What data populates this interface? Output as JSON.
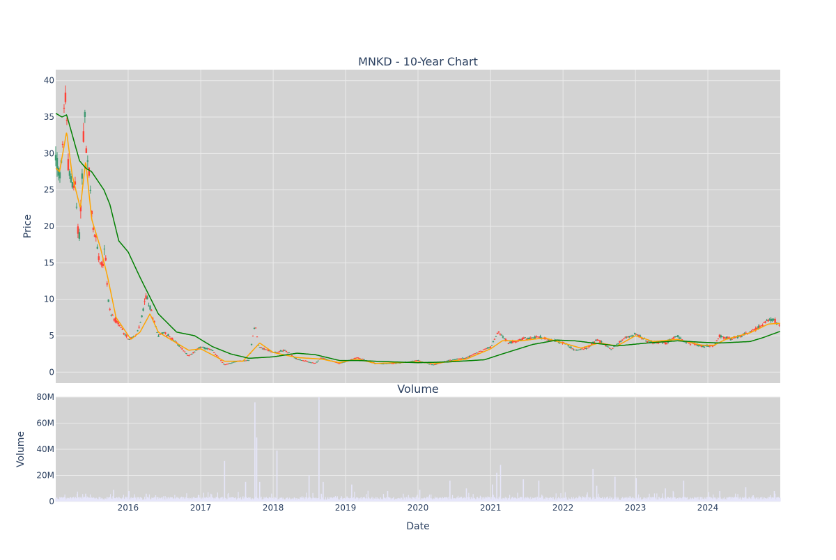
{
  "chart_data": [
    {
      "type": "candlestick",
      "title": "MNKD - 10-Year Chart",
      "xlabel": "",
      "ylabel": "Price",
      "ylim": [
        -1.5,
        41.5
      ],
      "yticks": [
        0,
        5,
        10,
        15,
        20,
        25,
        30,
        35,
        40
      ],
      "xlim": [
        "2015-01-01",
        "2024-12-31"
      ],
      "grid": true,
      "legend": "none",
      "colors": {
        "increasing": "#3d9970",
        "decreasing": "#ff4136",
        "ma_fast": "#ffa500",
        "ma_slow": "#008000",
        "plot_bg": "#d3d3d3",
        "grid": "#ebebeb"
      },
      "anchors": [
        [
          "2015-01-02",
          29.5
        ],
        [
          "2015-01-20",
          26.5
        ],
        [
          "2015-02-05",
          30.5
        ],
        [
          "2015-02-14",
          39.3
        ],
        [
          "2015-02-25",
          34.5
        ],
        [
          "2015-03-06",
          28.0
        ],
        [
          "2015-03-20",
          26.0
        ],
        [
          "2015-04-10",
          25.5
        ],
        [
          "2015-04-27",
          17.5
        ],
        [
          "2015-05-10",
          24.0
        ],
        [
          "2015-05-26",
          36.5
        ],
        [
          "2015-06-05",
          29.5
        ],
        [
          "2015-06-20",
          27.0
        ],
        [
          "2015-07-05",
          20.0
        ],
        [
          "2015-07-25",
          18.0
        ],
        [
          "2015-08-10",
          15.5
        ],
        [
          "2015-08-25",
          14.5
        ],
        [
          "2015-09-05",
          18.0
        ],
        [
          "2015-09-20",
          10.5
        ],
        [
          "2015-10-05",
          8.0
        ],
        [
          "2015-10-25",
          7.3
        ],
        [
          "2016-01-05",
          4.5
        ],
        [
          "2016-02-10",
          5.0
        ],
        [
          "2016-03-01",
          6.5
        ],
        [
          "2016-04-01",
          10.5
        ],
        [
          "2016-05-01",
          8.0
        ],
        [
          "2016-06-01",
          5.0
        ],
        [
          "2016-07-01",
          5.5
        ],
        [
          "2016-09-01",
          4.0
        ],
        [
          "2016-11-01",
          2.2
        ],
        [
          "2017-01-01",
          3.5
        ],
        [
          "2017-03-01",
          3.0
        ],
        [
          "2017-05-01",
          1.0
        ],
        [
          "2017-07-01",
          1.5
        ],
        [
          "2017-09-01",
          1.6
        ],
        [
          "2017-10-01",
          6.7
        ],
        [
          "2017-10-20",
          3.5
        ],
        [
          "2018-01-01",
          2.7
        ],
        [
          "2018-03-01",
          3.0
        ],
        [
          "2018-05-01",
          1.8
        ],
        [
          "2018-08-01",
          1.2
        ],
        [
          "2018-09-01",
          2.0
        ],
        [
          "2018-12-01",
          1.2
        ],
        [
          "2019-03-01",
          2.0
        ],
        [
          "2019-06-01",
          1.2
        ],
        [
          "2019-09-01",
          1.2
        ],
        [
          "2020-01-01",
          1.6
        ],
        [
          "2020-03-20",
          1.0
        ],
        [
          "2020-06-01",
          1.6
        ],
        [
          "2020-09-01",
          2.0
        ],
        [
          "2021-01-01",
          3.5
        ],
        [
          "2021-02-10",
          5.5
        ],
        [
          "2021-04-01",
          4.0
        ],
        [
          "2021-06-01",
          4.5
        ],
        [
          "2021-09-01",
          4.8
        ],
        [
          "2021-12-01",
          4.2
        ],
        [
          "2022-01-10",
          4.0
        ],
        [
          "2022-03-01",
          3.0
        ],
        [
          "2022-05-01",
          3.3
        ],
        [
          "2022-06-20",
          4.5
        ],
        [
          "2022-09-01",
          3.2
        ],
        [
          "2022-11-01",
          4.5
        ],
        [
          "2023-01-01",
          5.3
        ],
        [
          "2023-03-01",
          4.2
        ],
        [
          "2023-06-01",
          4.0
        ],
        [
          "2023-08-01",
          5.0
        ],
        [
          "2023-09-01",
          4.2
        ],
        [
          "2023-12-01",
          3.6
        ],
        [
          "2024-02-01",
          3.6
        ],
        [
          "2024-03-01",
          5.0
        ],
        [
          "2024-05-01",
          4.5
        ],
        [
          "2024-08-01",
          5.5
        ],
        [
          "2024-10-01",
          6.5
        ],
        [
          "2024-11-20",
          7.3
        ],
        [
          "2024-12-31",
          6.5
        ]
      ],
      "ma_fast_anchors": [
        [
          "2015-01-02",
          28.0
        ],
        [
          "2015-01-20",
          27.5
        ],
        [
          "2015-02-25",
          33.0
        ],
        [
          "2015-03-25",
          27.0
        ],
        [
          "2015-05-05",
          22.5
        ],
        [
          "2015-06-01",
          29.0
        ],
        [
          "2015-07-01",
          21.0
        ],
        [
          "2015-08-15",
          17.0
        ],
        [
          "2015-09-20",
          13.0
        ],
        [
          "2015-11-01",
          7.5
        ],
        [
          "2016-01-15",
          4.5
        ],
        [
          "2016-03-01",
          5.5
        ],
        [
          "2016-04-20",
          8.0
        ],
        [
          "2016-06-01",
          5.5
        ],
        [
          "2016-09-01",
          4.0
        ],
        [
          "2016-11-01",
          3.0
        ],
        [
          "2017-01-01",
          3.2
        ],
        [
          "2017-05-01",
          1.5
        ],
        [
          "2017-08-01",
          1.5
        ],
        [
          "2017-10-25",
          4.0
        ],
        [
          "2018-01-01",
          2.7
        ],
        [
          "2018-05-01",
          2.0
        ],
        [
          "2018-09-01",
          1.8
        ],
        [
          "2018-12-01",
          1.3
        ],
        [
          "2019-03-01",
          1.8
        ],
        [
          "2019-06-01",
          1.2
        ],
        [
          "2020-01-01",
          1.4
        ],
        [
          "2020-04-01",
          1.2
        ],
        [
          "2020-09-01",
          1.8
        ],
        [
          "2021-01-01",
          3.2
        ],
        [
          "2021-03-01",
          4.3
        ],
        [
          "2021-06-01",
          4.3
        ],
        [
          "2021-10-01",
          4.7
        ],
        [
          "2022-01-01",
          4.0
        ],
        [
          "2022-04-01",
          3.3
        ],
        [
          "2022-07-01",
          4.0
        ],
        [
          "2022-10-01",
          3.6
        ],
        [
          "2023-01-01",
          5.0
        ],
        [
          "2023-04-01",
          4.2
        ],
        [
          "2023-08-01",
          4.5
        ],
        [
          "2023-12-01",
          3.7
        ],
        [
          "2024-02-01",
          3.7
        ],
        [
          "2024-04-01",
          4.5
        ],
        [
          "2024-08-01",
          5.4
        ],
        [
          "2024-11-01",
          6.6
        ],
        [
          "2024-12-31",
          6.7
        ]
      ],
      "ma_slow_anchors": [
        [
          "2015-01-02",
          35.5
        ],
        [
          "2015-02-01",
          35.0
        ],
        [
          "2015-02-25",
          35.3
        ],
        [
          "2015-05-01",
          29.0
        ],
        [
          "2015-06-01",
          28.0
        ],
        [
          "2015-07-01",
          27.5
        ],
        [
          "2015-09-01",
          25.0
        ],
        [
          "2015-10-01",
          23.0
        ],
        [
          "2015-11-15",
          18.0
        ],
        [
          "2016-01-01",
          16.5
        ],
        [
          "2016-03-01",
          13.0
        ],
        [
          "2016-06-01",
          8.0
        ],
        [
          "2016-09-01",
          5.5
        ],
        [
          "2016-12-01",
          5.0
        ],
        [
          "2017-03-01",
          3.5
        ],
        [
          "2017-06-01",
          2.5
        ],
        [
          "2017-09-01",
          1.9
        ],
        [
          "2018-01-01",
          2.1
        ],
        [
          "2018-05-01",
          2.6
        ],
        [
          "2018-08-01",
          2.4
        ],
        [
          "2018-12-01",
          1.6
        ],
        [
          "2019-03-01",
          1.6
        ],
        [
          "2019-09-01",
          1.4
        ],
        [
          "2020-01-01",
          1.3
        ],
        [
          "2020-06-01",
          1.4
        ],
        [
          "2020-12-01",
          1.7
        ],
        [
          "2021-03-01",
          2.5
        ],
        [
          "2021-08-01",
          3.8
        ],
        [
          "2021-12-01",
          4.4
        ],
        [
          "2022-03-01",
          4.3
        ],
        [
          "2022-06-01",
          4.0
        ],
        [
          "2022-10-01",
          3.6
        ],
        [
          "2023-03-01",
          4.0
        ],
        [
          "2023-08-01",
          4.3
        ],
        [
          "2023-12-01",
          4.1
        ],
        [
          "2024-03-01",
          4.0
        ],
        [
          "2024-08-01",
          4.2
        ],
        [
          "2024-10-01",
          4.7
        ],
        [
          "2024-12-31",
          5.6
        ]
      ]
    },
    {
      "type": "bar",
      "title": "Volume",
      "xlabel": "Date",
      "ylabel": "Volume",
      "ylim": [
        0,
        80000000
      ],
      "yticks": [
        0,
        20000000,
        40000000,
        60000000,
        80000000
      ],
      "ytick_labels": [
        "0",
        "20M",
        "40M",
        "60M",
        "80M"
      ],
      "xticks": [
        "2016-01-01",
        "2017-01-01",
        "2018-01-01",
        "2019-01-01",
        "2020-01-01",
        "2021-01-01",
        "2022-01-01",
        "2023-01-01",
        "2024-01-01"
      ],
      "xtick_labels": [
        "2016",
        "2017",
        "2018",
        "2019",
        "2020",
        "2021",
        "2022",
        "2023",
        "2024"
      ],
      "color": "#e6e6fa",
      "spikes": [
        [
          "2015-06-01",
          6000000
        ],
        [
          "2015-10-20",
          9000000
        ],
        [
          "2016-01-05",
          8000000
        ],
        [
          "2016-04-01",
          6000000
        ],
        [
          "2016-12-20",
          5000000
        ],
        [
          "2017-05-01",
          31000000
        ],
        [
          "2017-08-15",
          15000000
        ],
        [
          "2017-10-01",
          76000000
        ],
        [
          "2017-10-10",
          49000000
        ],
        [
          "2017-10-25",
          15000000
        ],
        [
          "2018-01-20",
          39000000
        ],
        [
          "2018-07-01",
          20000000
        ],
        [
          "2018-08-20",
          80000000
        ],
        [
          "2018-09-10",
          15000000
        ],
        [
          "2019-02-01",
          13000000
        ],
        [
          "2019-08-01",
          8000000
        ],
        [
          "2020-01-10",
          9000000
        ],
        [
          "2020-06-10",
          16000000
        ],
        [
          "2020-09-01",
          10000000
        ],
        [
          "2021-01-10",
          13000000
        ],
        [
          "2021-02-01",
          22000000
        ],
        [
          "2021-02-20",
          28000000
        ],
        [
          "2021-06-15",
          17000000
        ],
        [
          "2021-09-01",
          16000000
        ],
        [
          "2022-06-01",
          25000000
        ],
        [
          "2022-06-20",
          12000000
        ],
        [
          "2022-09-20",
          19000000
        ],
        [
          "2023-01-05",
          18000000
        ],
        [
          "2023-06-01",
          10000000
        ],
        [
          "2023-09-01",
          16000000
        ],
        [
          "2024-03-01",
          8000000
        ],
        [
          "2024-07-10",
          11000000
        ],
        [
          "2024-12-01",
          8000000
        ]
      ]
    }
  ]
}
